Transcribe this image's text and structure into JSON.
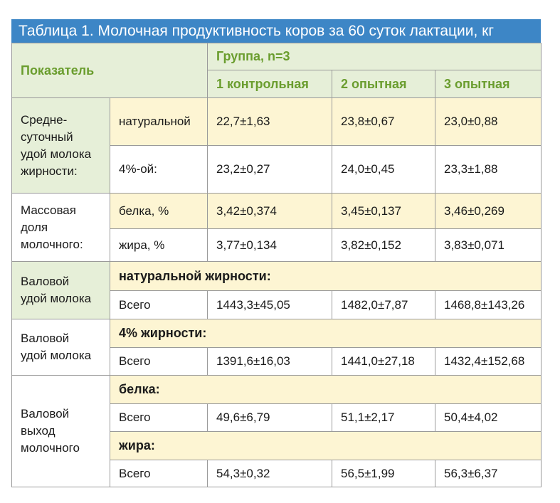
{
  "title": "Таблица 1. Молочная продуктивность коров за 60 суток лактации, кг",
  "header": {
    "indicator": "Показатель",
    "group": "Группа, n=3",
    "columns": [
      "1 контрольная",
      "2 опытная",
      "3 опытная"
    ]
  },
  "rows": [
    {
      "label": "Средне-\nсуточный\nудой молока\nжирности:",
      "sub": [
        {
          "name": "натуральной",
          "values": [
            "22,7±1,63",
            "23,8±0,67",
            "23,0±0,88"
          ]
        },
        {
          "name": "4%-ой:",
          "values": [
            "23,2±0,27",
            "24,0±0,45",
            "23,3±1,88"
          ]
        }
      ]
    },
    {
      "label": "Массовая\nдоля\nмолочного:",
      "sub": [
        {
          "name": "белка, %",
          "values": [
            "3,42±0,374",
            "3,45±0,137",
            "3,46±0,269"
          ]
        },
        {
          "name": "жира, %",
          "values": [
            "3,77±0,134",
            "3,82±0,152",
            "3,83±0,071"
          ]
        }
      ]
    },
    {
      "label": "Валовой\nудой молока",
      "section": "натуральной жирности:",
      "sub": [
        {
          "name": "Всего",
          "values": [
            "1443,3±45,05",
            "1482,0±7,87",
            "1468,8±143,26"
          ]
        }
      ]
    },
    {
      "label": "Валовой\nудой молока",
      "section": "4% жирности:",
      "sub": [
        {
          "name": "Всего",
          "values": [
            "1391,6±16,03",
            "1441,0±27,18",
            "1432,4±152,68"
          ]
        }
      ]
    },
    {
      "label": "Валовой\nвыход\nмолочного",
      "sections": [
        {
          "section": "белка:",
          "name": "Всего",
          "values": [
            "49,6±6,79",
            "51,1±2,17",
            "50,4±4,02"
          ]
        },
        {
          "section": "жира:",
          "name": "Всего",
          "values": [
            "54,3±0,32",
            "56,5±1,99",
            "56,3±6,37"
          ]
        }
      ]
    }
  ]
}
